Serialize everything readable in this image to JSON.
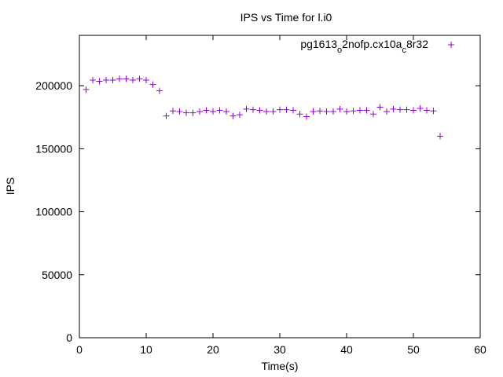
{
  "chart_data": {
    "type": "scatter",
    "title": "IPS vs Time for l.i0",
    "xlabel": "Time(s)",
    "ylabel": "IPS",
    "xlim": [
      0,
      60
    ],
    "ylim": [
      0,
      240000
    ],
    "xticks": [
      0,
      10,
      20,
      30,
      40,
      50,
      60
    ],
    "yticks": [
      0,
      50000,
      100000,
      150000,
      200000
    ],
    "grid": false,
    "legend_position": "top-right",
    "marker": "+",
    "series": [
      {
        "name": "pg1613_o2nofp.cx10a_c8r32",
        "legend_parts": [
          {
            "text": "pg1613",
            "sub": false
          },
          {
            "text": "o",
            "sub": true
          },
          {
            "text": "2nofp.cx10a",
            "sub": false
          },
          {
            "text": "c",
            "sub": true
          },
          {
            "text": "8r32",
            "sub": false
          }
        ],
        "color": "#9400d3",
        "x": [
          1,
          2,
          3,
          4,
          5,
          6,
          7,
          8,
          9,
          10,
          11,
          12,
          13,
          14,
          15,
          16,
          17,
          18,
          19,
          20,
          21,
          22,
          23,
          24,
          25,
          26,
          27,
          28,
          29,
          30,
          31,
          32,
          33,
          34,
          35,
          36,
          37,
          38,
          39,
          40,
          41,
          42,
          43,
          44,
          45,
          46,
          47,
          48,
          49,
          50,
          51,
          52,
          53,
          54
        ],
        "y": [
          197000,
          204500,
          203500,
          204500,
          204500,
          205500,
          205500,
          204500,
          205500,
          204500,
          201000,
          196000,
          176000,
          180000,
          179500,
          178500,
          178500,
          179500,
          180500,
          179500,
          180500,
          179500,
          176000,
          177000,
          181500,
          181000,
          180500,
          179500,
          179500,
          181000,
          181000,
          180500,
          177500,
          175500,
          179500,
          180000,
          179500,
          179500,
          181500,
          179500,
          180000,
          180500,
          180500,
          177500,
          183000,
          179500,
          181500,
          181000,
          181000,
          180500,
          182000,
          180500,
          180000,
          160000
        ]
      }
    ]
  }
}
